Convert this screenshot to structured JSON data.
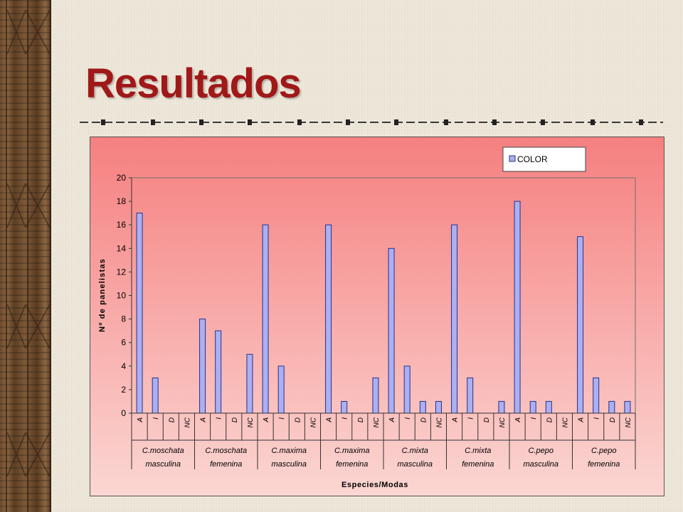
{
  "slide": {
    "title": "Resultados"
  },
  "colors": {
    "title": "#a01818",
    "bar_fill": "#aab0f2",
    "bar_stroke": "#2a2f8a"
  },
  "chart_data": {
    "type": "bar",
    "ylabel": "Nº de panelistas",
    "xlabel": "Especies/Modas",
    "ylim": [
      0,
      20
    ],
    "y_ticks": [
      "0",
      "2",
      "4",
      "6",
      "8",
      "10",
      "12",
      "14",
      "16",
      "18",
      "20"
    ],
    "legend": {
      "position": "top-right"
    },
    "series": [
      {
        "name": "COLOR",
        "values": [
          17,
          3,
          0,
          0,
          8,
          7,
          0,
          5,
          16,
          4,
          0,
          0,
          16,
          1,
          0,
          3,
          14,
          4,
          1,
          1,
          16,
          3,
          0,
          1,
          18,
          1,
          1,
          0,
          15,
          3,
          1,
          1
        ]
      }
    ],
    "categories": [
      "A",
      "I",
      "D",
      "NC",
      "A",
      "I",
      "D",
      "NC",
      "A",
      "I",
      "D",
      "NC",
      "A",
      "I",
      "D",
      "NC",
      "A",
      "I",
      "D",
      "NC",
      "A",
      "I",
      "D",
      "NC",
      "A",
      "I",
      "D",
      "NC",
      "A",
      "I",
      "D",
      "NC"
    ],
    "groups": [
      {
        "line1": "C.moschata",
        "line2": "masculina"
      },
      {
        "line1": "C.moschata",
        "line2": "femenina"
      },
      {
        "line1": "C.maxima",
        "line2": "masculina"
      },
      {
        "line1": "C.maxima",
        "line2": "femenina"
      },
      {
        "line1": "C.mixta",
        "line2": "masculina"
      },
      {
        "line1": "C.mixta",
        "line2": "femenina"
      },
      {
        "line1": "C.pepo",
        "line2": "masculina"
      },
      {
        "line1": "C.pepo",
        "line2": "femenina"
      }
    ]
  }
}
